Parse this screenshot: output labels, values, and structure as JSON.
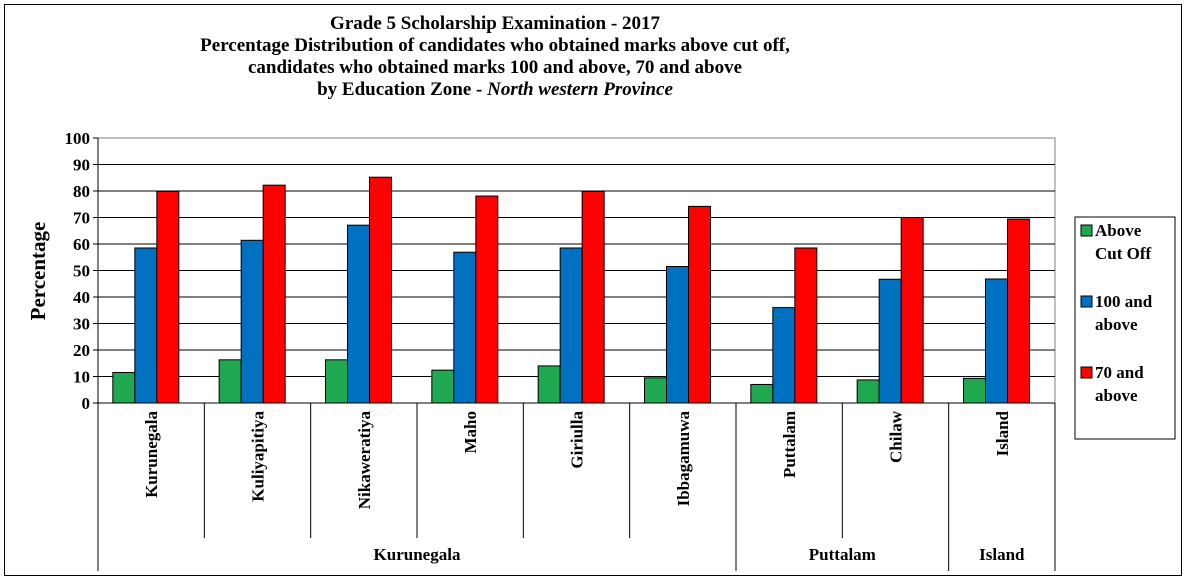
{
  "chart_data": {
    "type": "bar",
    "title": {
      "line1": "Grade 5 Scholarship Examination - 2017",
      "line2": "Percentage Distribution of candidates who obtained marks above cut off,",
      "line3": "candidates who obtained marks 100 and above, 70 and above",
      "line4_prefix": "by Education Zone - ",
      "line4_italic": "North western Province"
    },
    "ylabel": "Percentage",
    "ylim": [
      0,
      100
    ],
    "yticks": [
      "0",
      "10",
      "20",
      "30",
      "40",
      "50",
      "60",
      "70",
      "80",
      "90",
      "100"
    ],
    "categories": [
      "Kurunegala",
      "Kuliyapitiya",
      "Nikaweratiya",
      "Maho",
      "Giriulla",
      "Ibbagamuwa",
      "Puttalam",
      "Chilaw",
      "Island"
    ],
    "groups": [
      {
        "label": "Kurunegala",
        "span": 6
      },
      {
        "label": "Puttalam",
        "span": 2
      },
      {
        "label": "Island",
        "span": 1
      }
    ],
    "series": [
      {
        "name_line1": "Above",
        "name_line2": "Cut Off",
        "color": "#1fa84f",
        "values": [
          11.5,
          16.3,
          16.3,
          12.4,
          14.0,
          9.5,
          7.0,
          8.7,
          9.3
        ]
      },
      {
        "name_line1": "100 and",
        "name_line2": "above",
        "color": "#0070c0",
        "values": [
          58.5,
          61.4,
          67.1,
          56.9,
          58.5,
          51.5,
          36.0,
          46.7,
          46.8
        ]
      },
      {
        "name_line1": "70 and",
        "name_line2": "above",
        "color": "#ff0000",
        "values": [
          79.8,
          82.2,
          85.2,
          78.1,
          79.8,
          74.2,
          58.5,
          70.0,
          69.4
        ]
      }
    ],
    "grid": true,
    "legend": "right"
  }
}
